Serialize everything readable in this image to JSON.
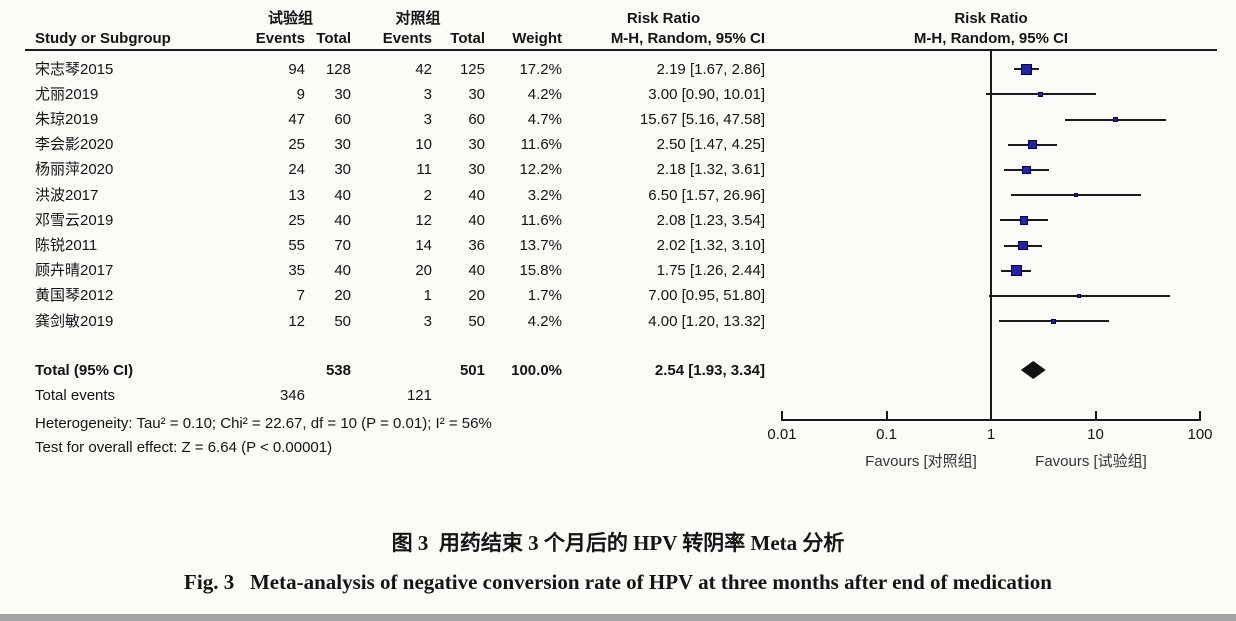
{
  "header": {
    "group_experimental": "试验组",
    "group_control": "对照组",
    "risk_ratio_table": "Risk Ratio",
    "risk_ratio_plot": "Risk Ratio",
    "method_table": "M-H, Random, 95% CI",
    "method_plot": "M-H, Random, 95% CI",
    "col_study": "Study or Subgroup",
    "col_events1": "Events",
    "col_total1": "Total",
    "col_events2": "Events",
    "col_total2": "Total",
    "col_weight": "Weight"
  },
  "chart_data": {
    "type": "forest",
    "effect_measure": "Risk Ratio",
    "model": "M-H, Random, 95% CI",
    "x_scale": "log",
    "xlim": [
      0.01,
      100
    ],
    "x_ticks": [
      {
        "value": 0.01,
        "label": "0.01"
      },
      {
        "value": 0.1,
        "label": "0.1"
      },
      {
        "value": 1,
        "label": "1"
      },
      {
        "value": 10,
        "label": "10"
      },
      {
        "value": 100,
        "label": "100"
      }
    ],
    "favours_left": "Favours [对照组]",
    "favours_right": "Favours [试验组]",
    "marker_color": "#2222a6",
    "diamond_color": "#111111",
    "studies": [
      {
        "name": "宋志琴2015",
        "events1": "94",
        "total1": "128",
        "events2": "42",
        "total2": "125",
        "weight": "17.2%",
        "weight_pct": 17.2,
        "ci_text": "2.19 [1.67, 2.86]",
        "rr": 2.19,
        "lo": 1.67,
        "hi": 2.86
      },
      {
        "name": "尤丽2019",
        "events1": "9",
        "total1": "30",
        "events2": "3",
        "total2": "30",
        "weight": "4.2%",
        "weight_pct": 4.2,
        "ci_text": "3.00 [0.90, 10.01]",
        "rr": 3.0,
        "lo": 0.9,
        "hi": 10.01
      },
      {
        "name": "朱琼2019",
        "events1": "47",
        "total1": "60",
        "events2": "3",
        "total2": "60",
        "weight": "4.7%",
        "weight_pct": 4.7,
        "ci_text": "15.67 [5.16, 47.58]",
        "rr": 15.67,
        "lo": 5.16,
        "hi": 47.58
      },
      {
        "name": "李会影2020",
        "events1": "25",
        "total1": "30",
        "events2": "10",
        "total2": "30",
        "weight": "11.6%",
        "weight_pct": 11.6,
        "ci_text": "2.50 [1.47, 4.25]",
        "rr": 2.5,
        "lo": 1.47,
        "hi": 4.25
      },
      {
        "name": "杨丽萍2020",
        "events1": "24",
        "total1": "30",
        "events2": "11",
        "total2": "30",
        "weight": "12.2%",
        "weight_pct": 12.2,
        "ci_text": "2.18 [1.32, 3.61]",
        "rr": 2.18,
        "lo": 1.32,
        "hi": 3.61
      },
      {
        "name": "洪波2017",
        "events1": "13",
        "total1": "40",
        "events2": "2",
        "total2": "40",
        "weight": "3.2%",
        "weight_pct": 3.2,
        "ci_text": "6.50 [1.57, 26.96]",
        "rr": 6.5,
        "lo": 1.57,
        "hi": 26.96
      },
      {
        "name": "邓雪云2019",
        "events1": "25",
        "total1": "40",
        "events2": "12",
        "total2": "40",
        "weight": "11.6%",
        "weight_pct": 11.6,
        "ci_text": "2.08 [1.23, 3.54]",
        "rr": 2.08,
        "lo": 1.23,
        "hi": 3.54
      },
      {
        "name": "陈锐2011",
        "events1": "55",
        "total1": "70",
        "events2": "14",
        "total2": "36",
        "weight": "13.7%",
        "weight_pct": 13.7,
        "ci_text": "2.02 [1.32, 3.10]",
        "rr": 2.02,
        "lo": 1.32,
        "hi": 3.1
      },
      {
        "name": "顾卉晴2017",
        "events1": "35",
        "total1": "40",
        "events2": "20",
        "total2": "40",
        "weight": "15.8%",
        "weight_pct": 15.8,
        "ci_text": "1.75 [1.26, 2.44]",
        "rr": 1.75,
        "lo": 1.26,
        "hi": 2.44
      },
      {
        "name": "黄国琴2012",
        "events1": "7",
        "total1": "20",
        "events2": "1",
        "total2": "20",
        "weight": "1.7%",
        "weight_pct": 1.7,
        "ci_text": "7.00 [0.95, 51.80]",
        "rr": 7.0,
        "lo": 0.95,
        "hi": 51.8
      },
      {
        "name": "龚剑敏2019",
        "events1": "12",
        "total1": "50",
        "events2": "3",
        "total2": "50",
        "weight": "4.2%",
        "weight_pct": 4.2,
        "ci_text": "4.00 [1.20, 13.32]",
        "rr": 4.0,
        "lo": 1.2,
        "hi": 13.32
      }
    ],
    "total": {
      "label": "Total (95% CI)",
      "total1": "538",
      "total2": "501",
      "weight": "100.0%",
      "ci_text": "2.54 [1.93, 3.34]",
      "rr": 2.54,
      "lo": 1.93,
      "hi": 3.34
    },
    "total_events": {
      "label": "Total events",
      "events1": "346",
      "events2": "121"
    },
    "heterogeneity": "Heterogeneity: Tau² = 0.10; Chi² = 22.67, df = 10 (P = 0.01); I² = 56%",
    "overall_effect": "Test for overall effect: Z = 6.64 (P < 0.00001)"
  },
  "caption": {
    "zh_label": "图 3",
    "zh_text": "用药结束 3 个月后的 HPV 转阴率 Meta 分析",
    "en_label": "Fig. 3",
    "en_text": "Meta-analysis of negative conversion rate of HPV at three months after end of medication"
  }
}
